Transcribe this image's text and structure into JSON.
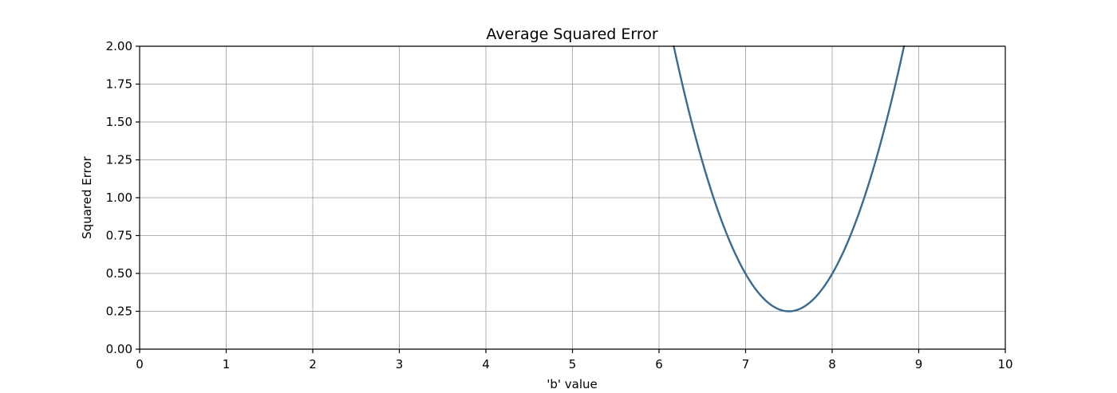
{
  "chart_data": {
    "type": "line",
    "title": "Average Squared Error",
    "xlabel": "'b' value",
    "ylabel": "Squared Error",
    "xlim": [
      0,
      10
    ],
    "ylim": [
      0,
      2
    ],
    "xticks": [
      0,
      1,
      2,
      3,
      4,
      5,
      6,
      7,
      8,
      9,
      10
    ],
    "xtick_labels": [
      "0",
      "1",
      "2",
      "3",
      "4",
      "5",
      "6",
      "7",
      "8",
      "9",
      "10"
    ],
    "yticks": [
      0,
      0.25,
      0.5,
      0.75,
      1.0,
      1.25,
      1.5,
      1.75,
      2.0
    ],
    "ytick_labels": [
      "0.00",
      "0.25",
      "0.50",
      "0.75",
      "1.00",
      "1.25",
      "1.50",
      "1.75",
      "2.00"
    ],
    "grid": true,
    "series": [
      {
        "color": "#3b6a8f",
        "x": [
          6.17,
          6.25,
          6.5,
          6.75,
          7.0,
          7.25,
          7.5,
          7.75,
          8.0,
          8.25,
          8.5,
          8.75,
          8.83
        ],
        "y": [
          2.0,
          1.8125,
          1.25,
          0.8125,
          0.5,
          0.3125,
          0.25,
          0.3125,
          0.5,
          0.8125,
          1.25,
          1.8125,
          2.0
        ]
      }
    ]
  }
}
